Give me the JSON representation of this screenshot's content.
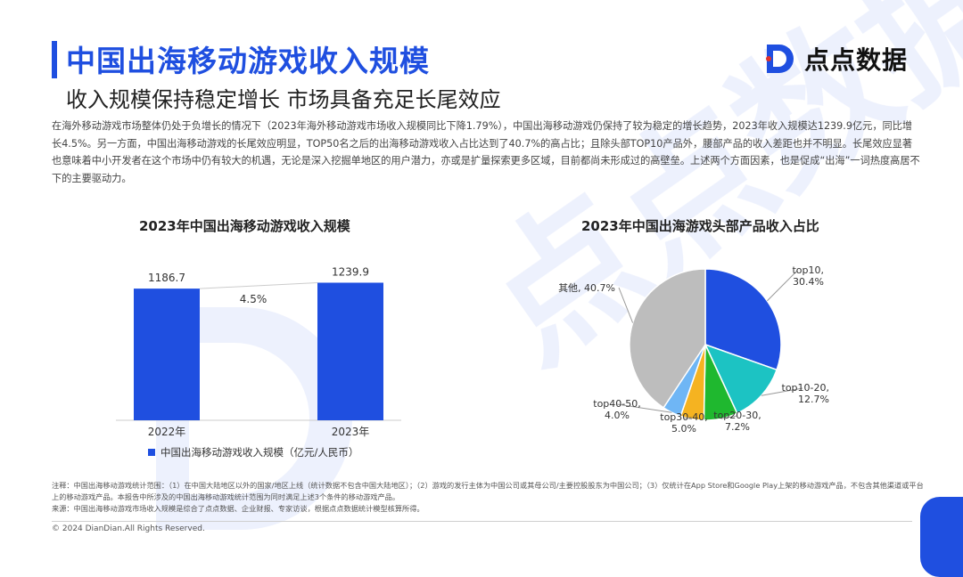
{
  "header": {
    "title": "中国出海移动游戏收入规模",
    "subtitle": "收入规模保持稳定增长 市场具备充足长尾效应",
    "brand": "点点数据"
  },
  "body": {
    "paragraph": "在海外移动游戏市场整体仍处于负增长的情况下（2023年海外移动游戏市场收入规模同比下降1.79%），中国出海移动游戏仍保持了较为稳定的增长趋势，2023年收入规模达1239.9亿元，同比增长4.5%。另一方面，中国出海移动游戏的长尾效应明显，TOP50名之后的出海移动游戏收入占比达到了40.7%的高占比；且除头部TOP10产品外，腰部产品的收入差距也并不明显。长尾效应显著也意味着中小开发者在这个市场中仍有较大的机遇，无论是深入挖掘单地区的用户潜力，亦或是扩量探索更多区域，目前都尚未形成过的高壁垒。上述两个方面因素，也是促成“出海”一词热度高居不下的主要驱动力。"
  },
  "bar_chart": {
    "title": "2023年中国出海移动游戏收入规模",
    "growth_label": "4.5%",
    "legend": "中国出海移动游戏收入规模（亿元/人民币）"
  },
  "pie_chart": {
    "title": "2023年中国出海游戏头部产品收入占比"
  },
  "chart_data": [
    {
      "type": "bar",
      "title": "2023年中国出海移动游戏收入规模",
      "categories": [
        "2022年",
        "2023年"
      ],
      "series": [
        {
          "name": "中国出海移动游戏收入规模（亿元/人民币）",
          "values": [
            1186.7,
            1239.9
          ],
          "labels": [
            "1186.7",
            "1239.9"
          ]
        }
      ],
      "ylim": [
        0,
        1300
      ],
      "annotation": "4.5%",
      "color": "#1f4fe0"
    },
    {
      "type": "pie",
      "title": "2023年中国出海游戏头部产品收入占比",
      "slices": [
        {
          "name": "top10",
          "value": 30.4,
          "label": "30.4%",
          "color": "#1f4fe0"
        },
        {
          "name": "top10-20",
          "value": 12.7,
          "label": "12.7%",
          "color": "#1cc3c3"
        },
        {
          "name": "top20-30",
          "value": 7.2,
          "label": "7.2%",
          "color": "#1fb82f"
        },
        {
          "name": "top30-40",
          "value": 5.0,
          "label": "5.0%",
          "color": "#f5b321"
        },
        {
          "name": "top40-50",
          "value": 4.0,
          "label": "4.0%",
          "color": "#6fb6f5"
        },
        {
          "name": "其他",
          "value": 40.7,
          "label": "40.7%",
          "color": "#bdbdbd"
        }
      ]
    }
  ],
  "notes": {
    "line1": "注释：中国出海移动游戏统计范围：（1）在中国大陆地区以外的国家/地区上线（统计数据不包含中国大陆地区）；（2）游戏的发行主体为中国公司或其母公司/主要控股股东为中国公司；（3）仅统计在App Store和Google Play上架的移动游戏产品，不包含其他渠道或平台上的移动游戏产品。本报告中所涉及的中国出海移动游戏统计范围为同时满足上述3个条件的移动游戏产品。",
    "line2": "来源：中国出海移动游戏市场收入规模是综合了点点数据、企业财报、专家访谈，根据点点数据统计模型核算所得。"
  },
  "footer": {
    "copyright": "© 2024 DianDian.All Rights Reserved."
  }
}
